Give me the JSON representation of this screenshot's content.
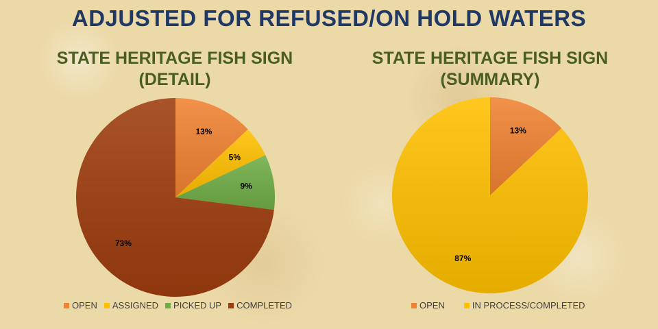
{
  "title": "ADJUSTED FOR REFUSED/ON HOLD WATERS",
  "chart_data": [
    {
      "type": "pie",
      "title_lines": [
        "STATE HERITAGE FISH SIGN",
        "(DETAIL)"
      ],
      "categories": [
        "OPEN",
        "ASSIGNED",
        "PICKED UP",
        "COMPLETED"
      ],
      "values": [
        13,
        5,
        9,
        73
      ],
      "labels": [
        "13%",
        "5%",
        "9%",
        "73%"
      ],
      "colors": [
        "#f08232",
        "#ffc000",
        "#70ad47",
        "#9e3c0e"
      ],
      "legend_position": "bottom"
    },
    {
      "type": "pie",
      "title_lines": [
        "STATE HERITAGE FISH SIGN",
        "(SUMMARY)"
      ],
      "categories": [
        "OPEN",
        "IN PROCESS/COMPLETED"
      ],
      "values": [
        13,
        87
      ],
      "labels": [
        "13%",
        "87%"
      ],
      "colors": [
        "#f08232",
        "#ffc000"
      ],
      "legend_position": "bottom"
    }
  ]
}
